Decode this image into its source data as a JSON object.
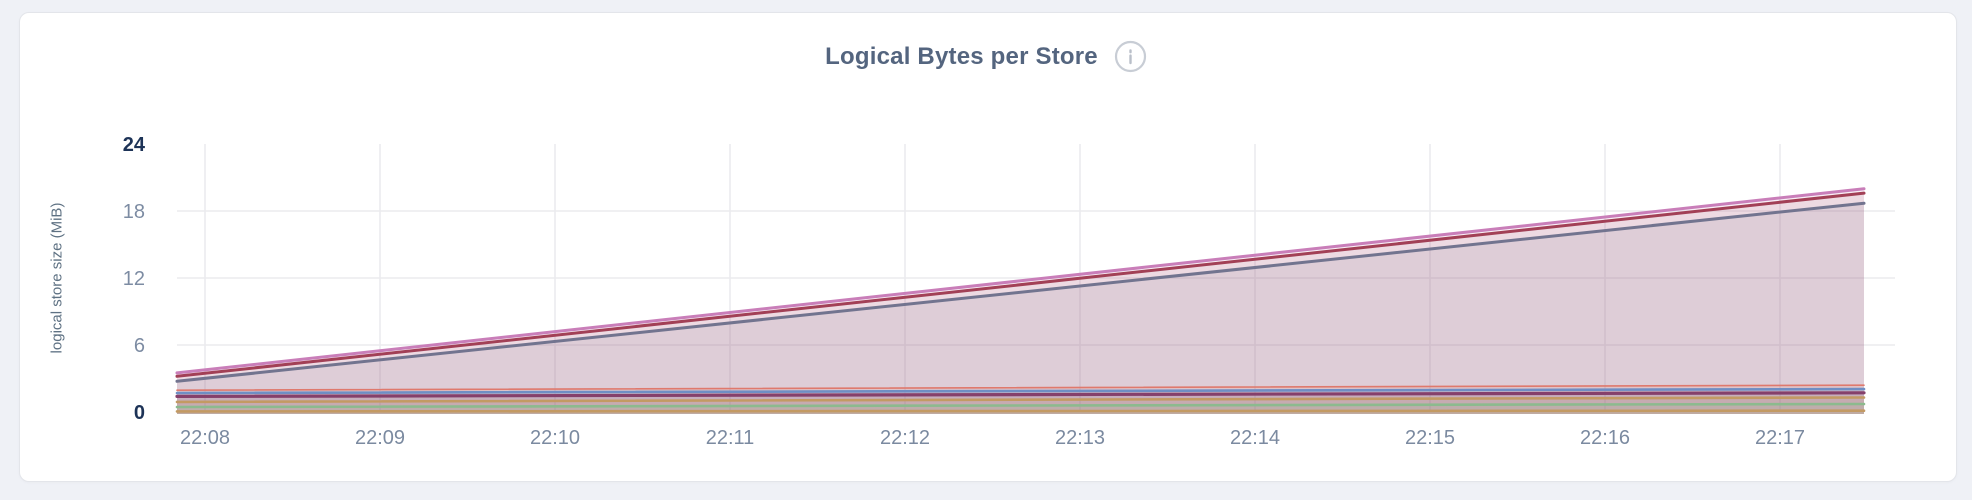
{
  "header": {
    "title": "Logical Bytes per Store",
    "info_icon": "info-icon"
  },
  "chart_data": {
    "type": "area",
    "title": "Logical Bytes per Store",
    "xlabel": "",
    "ylabel": "logical store size (MiB)",
    "ylim": [
      0,
      24
    ],
    "y_ticks": [
      0,
      6,
      12,
      18,
      24
    ],
    "y_ticks_emphasized": [
      0,
      24
    ],
    "x_ticks": [
      "22:08",
      "22:09",
      "22:10",
      "22:11",
      "22:12",
      "22:13",
      "22:14",
      "22:15",
      "22:16",
      "22:17"
    ],
    "x_extent_ticks": [
      -0.16,
      9.48
    ],
    "grid": true,
    "legend": "none",
    "series": [
      {
        "name": "series-1",
        "color": "#c97eb9",
        "line_width": 3,
        "fill_opacity": 0.12,
        "points": [
          [
            -0.16,
            3.5
          ],
          [
            9.48,
            20.0
          ]
        ]
      },
      {
        "name": "series-2",
        "color": "#a24056",
        "line_width": 3,
        "fill_opacity": 0.12,
        "points": [
          [
            -0.16,
            3.2
          ],
          [
            9.48,
            19.6
          ]
        ]
      },
      {
        "name": "series-3",
        "color": "#72748f",
        "line_width": 3,
        "fill_opacity": 0.12,
        "points": [
          [
            -0.16,
            2.75
          ],
          [
            9.48,
            18.7
          ]
        ]
      },
      {
        "name": "series-4",
        "color": "#df796d",
        "line_width": 1.6,
        "fill_opacity": 0.12,
        "points": [
          [
            -0.16,
            1.95
          ],
          [
            9.48,
            2.4
          ]
        ]
      },
      {
        "name": "series-5",
        "color": "#6f8ec4",
        "line_width": 2.6,
        "fill_opacity": 0.12,
        "points": [
          [
            -0.16,
            1.7
          ],
          [
            9.48,
            2.05
          ]
        ]
      },
      {
        "name": "series-6",
        "color": "#85406b",
        "line_width": 3.2,
        "fill_opacity": 0.12,
        "points": [
          [
            -0.16,
            1.4
          ],
          [
            9.48,
            1.72
          ]
        ]
      },
      {
        "name": "series-7",
        "color": "#c39a63",
        "line_width": 2.6,
        "fill_opacity": 0.12,
        "points": [
          [
            -0.16,
            0.9
          ],
          [
            9.48,
            1.3
          ]
        ]
      },
      {
        "name": "series-8",
        "color": "#8cba8e",
        "line_width": 2.6,
        "fill_opacity": 0.12,
        "points": [
          [
            -0.16,
            0.45
          ],
          [
            9.48,
            0.72
          ]
        ]
      },
      {
        "name": "series-9",
        "color": "#c39a63",
        "line_width": 2.6,
        "fill_opacity": 0.12,
        "points": [
          [
            -0.16,
            0.05
          ],
          [
            9.48,
            0.12
          ]
        ]
      }
    ]
  },
  "style": {
    "page_background": "#eff1f6",
    "card_background": "#ffffff",
    "card_border": "#e3e5ea",
    "title_color": "#54657f",
    "grid_color": "#ebebee",
    "x_tick_color": "#7b8aa0",
    "y_tick_color": "#7d8ca3",
    "y_tick_extreme_color": "#1d3357",
    "info_icon_color": "#c8cdd5"
  }
}
